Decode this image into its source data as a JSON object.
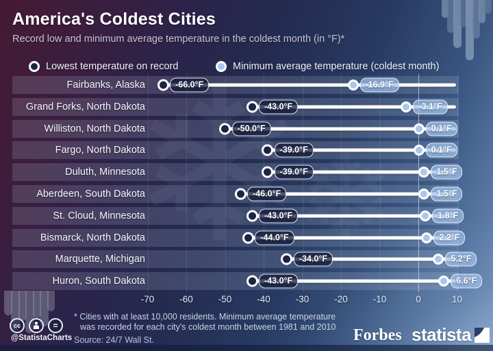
{
  "header": {
    "title": "America's Coldest Cities",
    "subtitle": "Record low and minimum average temperature in the coldest month (in °F)*"
  },
  "legend": {
    "record_label": "Lowest temperature on record",
    "average_label": "Minimum average temperature (coldest month)"
  },
  "chart_data": {
    "type": "dumbbell",
    "title": "America's Coldest Cities",
    "subtitle": "Record low and minimum average temperature in the coldest month (in °F)*",
    "unit": "°F",
    "categories": [
      "Fairbanks, Alaska",
      "Grand Forks, North Dakota",
      "Williston, North Dakota",
      "Fargo, North Dakota",
      "Duluth, Minnesota",
      "Aberdeen, South Dakota",
      "St. Cloud, Minnesota",
      "Bismarck, North Dakota",
      "Marquette, Michigan",
      "Huron, South Dakota"
    ],
    "series": [
      {
        "name": "Lowest temperature on record",
        "values": [
          -66.0,
          -43.0,
          -50.0,
          -39.0,
          -39.0,
          -46.0,
          -43.0,
          -44.0,
          -34.0,
          -43.0
        ],
        "labels": [
          "-66.0°F",
          "-43.0°F",
          "-50.0°F",
          "-39.0°F",
          "-39.0°F",
          "-46.0°F",
          "-43.0°F",
          "-44.0°F",
          "-34.0°F",
          "-43.0°F"
        ]
      },
      {
        "name": "Minimum average temperature (coldest month)",
        "values": [
          -16.9,
          -3.1,
          0.1,
          0.1,
          1.5,
          1.5,
          1.8,
          2.2,
          5.2,
          6.6
        ],
        "labels": [
          "-16.9°F",
          "-3.1°F",
          "0.1°F",
          "0.1°F",
          "1.5°F",
          "1.5°F",
          "1.8°F",
          "2.2°F",
          "5.2°F",
          "6.6°F"
        ]
      }
    ],
    "x_axis": {
      "ticks": [
        -70,
        -60,
        -50,
        -40,
        -30,
        -20,
        -10,
        0,
        10
      ],
      "tick_labels": [
        "-70",
        "-60",
        "-50",
        "-40",
        "-30",
        "-20",
        "-10",
        "0",
        "10"
      ],
      "xlim": [
        -75,
        13
      ],
      "grid": true,
      "zero_line_highlighted": true
    },
    "legend_position": "top"
  },
  "footer": {
    "license_cc": "cc",
    "license_nd": "=",
    "handle": "@StatistaCharts",
    "footnote_line1": "* Cities with at least 10,000 residents. Minimum average temperature",
    "footnote_line2": "was recorded for each city's coldest month between 1981 and 2010",
    "source": "Source: 24/7 Wall St.",
    "brand_forbes": "Forbes",
    "brand_statista": "statista"
  },
  "colors": {
    "record_dot_fill": "#1d2443",
    "average_dot_fill": "#a9c7ef",
    "track": "#fbfcfe",
    "average_box_bg": "#9ec0eb",
    "background_top_left": "#451a31",
    "background_mid": "#242b50",
    "background_bottom_right": "#7b9bc2"
  }
}
